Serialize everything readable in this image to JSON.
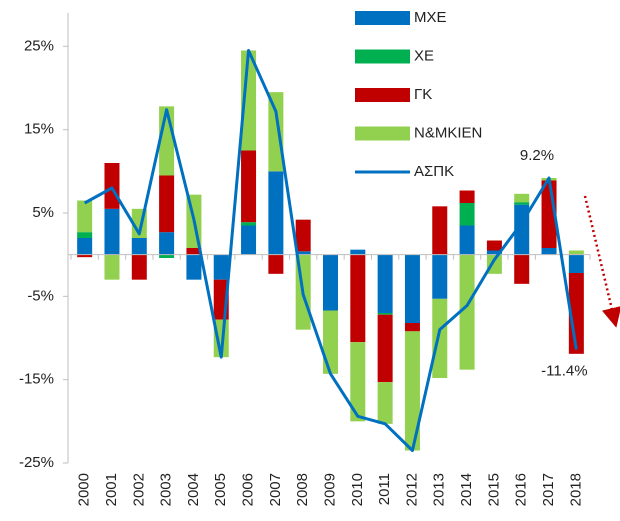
{
  "chart_data": {
    "type": "bar",
    "categories": [
      "2000",
      "2001",
      "2002",
      "2003",
      "2004",
      "2005",
      "2006",
      "2007",
      "2008",
      "2009",
      "2010",
      "2011",
      "2012",
      "2013",
      "2014",
      "2015",
      "2016",
      "2017",
      "2018"
    ],
    "ylim": [
      -25,
      29
    ],
    "yticks": [
      {
        "value": -25,
        "label": "-25%"
      },
      {
        "value": -15,
        "label": "-15%"
      },
      {
        "value": -5,
        "label": "-5%"
      },
      {
        "value": 5,
        "label": "5%"
      },
      {
        "value": 15,
        "label": "15%"
      },
      {
        "value": 25,
        "label": "25%"
      }
    ],
    "stacked": true,
    "series": [
      {
        "name": "ΜΧΕ",
        "color": "#0070c0",
        "values": [
          2.0,
          5.5,
          2.0,
          2.7,
          -3.0,
          -3.0,
          3.5,
          10.0,
          0.4,
          -6.7,
          0.6,
          -7.0,
          -8.2,
          -5.3,
          3.5,
          0.5,
          6.0,
          0.8,
          -2.2
        ]
      },
      {
        "name": "ΧΕ",
        "color": "#00b050",
        "values": [
          0.7,
          0,
          0,
          -0.4,
          0,
          0,
          0.4,
          0,
          0,
          0,
          0,
          -0.2,
          0,
          0,
          2.7,
          0,
          0.3,
          0,
          0
        ]
      },
      {
        "name": "ΓΚ",
        "color": "#c00000",
        "values": [
          -0.3,
          5.5,
          -3.0,
          6.8,
          0.8,
          -4.8,
          8.6,
          -2.3,
          3.8,
          0,
          -10.5,
          -8.1,
          -1.0,
          5.8,
          1.5,
          1.2,
          -3.5,
          8.1,
          -9.7
        ]
      },
      {
        "name": "Ν&ΜΚΙΕΝ",
        "color": "#92d050",
        "values": [
          3.8,
          -3.0,
          3.5,
          8.3,
          6.4,
          -4.5,
          12.0,
          9.5,
          -9.0,
          -7.6,
          -9.5,
          -5.0,
          -14.3,
          -9.5,
          -13.8,
          -2.3,
          1.0,
          0.3,
          0.5
        ]
      },
      {
        "name": "ΑΣΠΚ",
        "type": "line",
        "color": "#0070c0",
        "values": [
          6.2,
          8.0,
          2.5,
          17.4,
          4.2,
          -12.3,
          24.5,
          17.2,
          -4.8,
          -14.3,
          -19.4,
          -20.3,
          -23.5,
          -9.0,
          -6.1,
          -0.6,
          3.8,
          9.2,
          -11.4
        ],
        "value_labels": [
          null,
          null,
          null,
          null,
          null,
          null,
          null,
          null,
          null,
          null,
          null,
          null,
          null,
          null,
          null,
          null,
          null,
          "9.2%",
          "-11.4%"
        ]
      }
    ]
  }
}
